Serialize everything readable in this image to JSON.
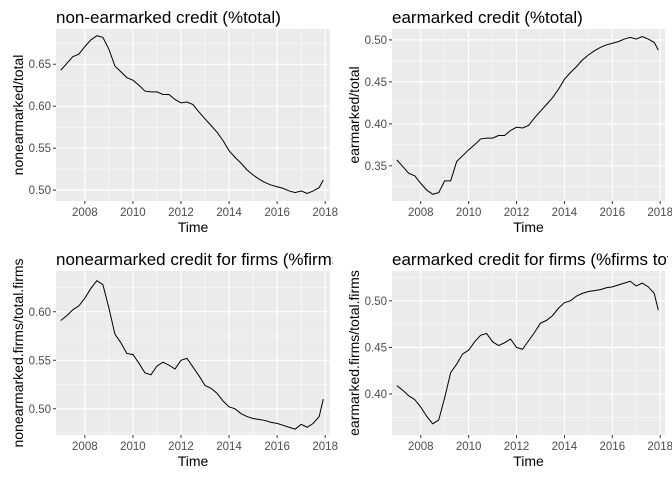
{
  "chart_data": [
    {
      "type": "line",
      "title": "non-earmarked credit (%total)",
      "xlabel": "Time",
      "ylabel": "nonearmarked/total",
      "xlim": [
        2006.8,
        2018.2
      ],
      "ylim": [
        0.487,
        0.692
      ],
      "xticks": [
        "2008",
        "2010",
        "2012",
        "2014",
        "2016",
        "2018"
      ],
      "yticks": [
        "0.50",
        "0.55",
        "0.60",
        "0.65"
      ],
      "grid": true,
      "x": [
        2007.0,
        2007.25,
        2007.5,
        2007.75,
        2008.0,
        2008.25,
        2008.5,
        2008.75,
        2009.0,
        2009.25,
        2009.5,
        2009.75,
        2010.0,
        2010.25,
        2010.5,
        2010.75,
        2011.0,
        2011.25,
        2011.5,
        2011.75,
        2012.0,
        2012.25,
        2012.5,
        2012.75,
        2013.0,
        2013.25,
        2013.5,
        2013.75,
        2014.0,
        2014.25,
        2014.5,
        2014.75,
        2015.0,
        2015.25,
        2015.5,
        2015.75,
        2016.0,
        2016.25,
        2016.5,
        2016.75,
        2017.0,
        2017.25,
        2017.5,
        2017.75,
        2017.92
      ],
      "y": [
        0.643,
        0.651,
        0.659,
        0.662,
        0.671,
        0.679,
        0.684,
        0.682,
        0.668,
        0.648,
        0.641,
        0.634,
        0.631,
        0.625,
        0.618,
        0.617,
        0.617,
        0.614,
        0.614,
        0.608,
        0.604,
        0.605,
        0.602,
        0.593,
        0.585,
        0.577,
        0.569,
        0.559,
        0.547,
        0.539,
        0.532,
        0.524,
        0.518,
        0.513,
        0.509,
        0.506,
        0.504,
        0.502,
        0.499,
        0.497,
        0.499,
        0.496,
        0.499,
        0.503,
        0.512
      ]
    },
    {
      "type": "line",
      "title": "earmarked credit (%total)",
      "xlabel": "Time",
      "ylabel": "earmarked/total",
      "xlim": [
        2006.8,
        2018.2
      ],
      "ylim": [
        0.308,
        0.513
      ],
      "xticks": [
        "2008",
        "2010",
        "2012",
        "2014",
        "2016",
        "2018"
      ],
      "yticks": [
        "0.35",
        "0.40",
        "0.45",
        "0.50"
      ],
      "grid": true,
      "x": [
        2007.0,
        2007.25,
        2007.5,
        2007.75,
        2008.0,
        2008.25,
        2008.5,
        2008.75,
        2009.0,
        2009.25,
        2009.5,
        2009.75,
        2010.0,
        2010.25,
        2010.5,
        2010.75,
        2011.0,
        2011.25,
        2011.5,
        2011.75,
        2012.0,
        2012.25,
        2012.5,
        2012.75,
        2013.0,
        2013.25,
        2013.5,
        2013.75,
        2014.0,
        2014.25,
        2014.5,
        2014.75,
        2015.0,
        2015.25,
        2015.5,
        2015.75,
        2016.0,
        2016.25,
        2016.5,
        2016.75,
        2017.0,
        2017.25,
        2017.5,
        2017.75,
        2017.92
      ],
      "y": [
        0.357,
        0.349,
        0.341,
        0.338,
        0.329,
        0.321,
        0.316,
        0.318,
        0.332,
        0.332,
        0.355,
        0.362,
        0.369,
        0.375,
        0.382,
        0.383,
        0.383,
        0.386,
        0.386,
        0.392,
        0.396,
        0.395,
        0.398,
        0.407,
        0.415,
        0.423,
        0.431,
        0.441,
        0.453,
        0.461,
        0.468,
        0.476,
        0.482,
        0.487,
        0.491,
        0.494,
        0.496,
        0.498,
        0.501,
        0.503,
        0.501,
        0.504,
        0.501,
        0.497,
        0.488
      ]
    },
    {
      "type": "line",
      "title": "nonearmarked credit for firms (%firms total)",
      "xlabel": "Time",
      "ylabel": "nonearmarked.firms/total.firms",
      "xlim": [
        2006.8,
        2018.2
      ],
      "ylim": [
        0.473,
        0.642
      ],
      "xticks": [
        "2008",
        "2010",
        "2012",
        "2014",
        "2016",
        "2018"
      ],
      "yticks": [
        "0.50",
        "0.55",
        "0.60"
      ],
      "grid": true,
      "x": [
        2007.0,
        2007.25,
        2007.5,
        2007.75,
        2008.0,
        2008.25,
        2008.5,
        2008.75,
        2009.0,
        2009.25,
        2009.5,
        2009.75,
        2010.0,
        2010.25,
        2010.5,
        2010.75,
        2011.0,
        2011.25,
        2011.5,
        2011.75,
        2012.0,
        2012.25,
        2012.5,
        2012.75,
        2013.0,
        2013.25,
        2013.5,
        2013.75,
        2014.0,
        2014.25,
        2014.5,
        2014.75,
        2015.0,
        2015.25,
        2015.5,
        2015.75,
        2016.0,
        2016.25,
        2016.5,
        2016.75,
        2017.0,
        2017.25,
        2017.5,
        2017.75,
        2017.92
      ],
      "y": [
        0.591,
        0.596,
        0.602,
        0.606,
        0.614,
        0.624,
        0.632,
        0.628,
        0.604,
        0.577,
        0.568,
        0.557,
        0.556,
        0.547,
        0.537,
        0.535,
        0.544,
        0.548,
        0.545,
        0.541,
        0.55,
        0.552,
        0.543,
        0.534,
        0.524,
        0.521,
        0.516,
        0.508,
        0.502,
        0.5,
        0.495,
        0.492,
        0.49,
        0.489,
        0.488,
        0.486,
        0.485,
        0.483,
        0.481,
        0.479,
        0.484,
        0.481,
        0.485,
        0.492,
        0.51
      ]
    },
    {
      "type": "line",
      "title": "earmarked credit for firms (%firms total)",
      "xlabel": "Time",
      "ylabel": "earmarked.firms/total.firms",
      "xlim": [
        2006.8,
        2018.2
      ],
      "ylim": [
        0.356,
        0.532
      ],
      "xticks": [
        "2008",
        "2010",
        "2012",
        "2014",
        "2016",
        "2018"
      ],
      "yticks": [
        "0.40",
        "0.45",
        "0.50"
      ],
      "grid": true,
      "x": [
        2007.0,
        2007.25,
        2007.5,
        2007.75,
        2008.0,
        2008.25,
        2008.5,
        2008.75,
        2009.0,
        2009.25,
        2009.5,
        2009.75,
        2010.0,
        2010.25,
        2010.5,
        2010.75,
        2011.0,
        2011.25,
        2011.5,
        2011.75,
        2012.0,
        2012.25,
        2012.5,
        2012.75,
        2013.0,
        2013.25,
        2013.5,
        2013.75,
        2014.0,
        2014.25,
        2014.5,
        2014.75,
        2015.0,
        2015.25,
        2015.5,
        2015.75,
        2016.0,
        2016.25,
        2016.5,
        2016.75,
        2017.0,
        2017.25,
        2017.5,
        2017.75,
        2017.92
      ],
      "y": [
        0.409,
        0.404,
        0.398,
        0.394,
        0.386,
        0.376,
        0.368,
        0.372,
        0.396,
        0.423,
        0.432,
        0.443,
        0.447,
        0.456,
        0.463,
        0.465,
        0.456,
        0.452,
        0.455,
        0.459,
        0.45,
        0.448,
        0.457,
        0.466,
        0.476,
        0.479,
        0.484,
        0.492,
        0.498,
        0.5,
        0.505,
        0.508,
        0.51,
        0.511,
        0.512,
        0.514,
        0.515,
        0.517,
        0.519,
        0.521,
        0.516,
        0.519,
        0.515,
        0.508,
        0.49
      ]
    }
  ]
}
